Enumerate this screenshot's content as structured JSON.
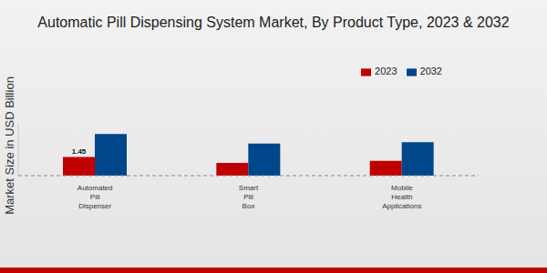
{
  "chart_data": {
    "type": "bar",
    "title": "Automatic Pill Dispensing System Market, By Product Type, 2023 & 2032",
    "y_label": "Market Size in USD Billion",
    "categories": [
      "Automated Pill Dispenser",
      "Smart Pill Box",
      "Mobile Health Applications"
    ],
    "series": [
      {
        "name": "2023",
        "color": "#c00000",
        "values": [
          1.45,
          0.99,
          1.16
        ],
        "value_labels": [
          "1.45",
          null,
          null
        ]
      },
      {
        "name": "2032",
        "color": "#00468b",
        "values": [
          3.25,
          2.5,
          2.6
        ]
      }
    ],
    "ylim": [
      0,
      4
    ],
    "yticks": [],
    "tick_labels": "x",
    "legend": "top right"
  }
}
